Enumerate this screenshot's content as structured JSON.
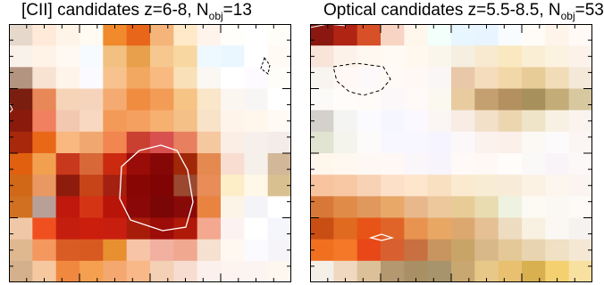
{
  "panels": [
    {
      "title_prefix": "[CII] candidates z=6-8, N",
      "title_sub": "obj",
      "title_suffix": "=13",
      "grid": [
        [
          "#e6d9cc",
          "#ffe9d9",
          "#fff4e8",
          "#fffaf2",
          "#f08a2c",
          "#e8661a",
          "#f4b47a",
          "#ffe9c8",
          "#fff4ec",
          "#fffefb",
          "#ffffff",
          "#fffdf8"
        ],
        [
          "#f8f2ea",
          "#fff2e6",
          "#fff9f2",
          "#f6fbff",
          "#f2c080",
          "#e8a04c",
          "#f6c890",
          "#f8d8a0",
          "#eef8ff",
          "#eaf7ff",
          "#ffffff",
          "#fffaf4"
        ],
        [
          "#b39480",
          "#f8e2d2",
          "#fff4ea",
          "#fbfbff",
          "#f8c28e",
          "#f2a860",
          "#f8ba80",
          "#fae0b8",
          "#fbf8f4",
          "#ffffff",
          "#fdfbff",
          "#fffdf8"
        ],
        [
          "#7a1e10",
          "#e88858",
          "#f6d4b8",
          "#f6d4bc",
          "#f4aa70",
          "#f08c40",
          "#f29c56",
          "#f6c484",
          "#fae6c8",
          "#fbf6f0",
          "#f8f6f4",
          "#ffffff"
        ],
        [
          "#8a1a0c",
          "#f08060",
          "#f2c8b0",
          "#f8d8c0",
          "#f49a58",
          "#f4a060",
          "#f6b070",
          "#f4c088",
          "#f8e2c8",
          "#fff4ea",
          "#fff6ec",
          "#fffaf4"
        ],
        [
          "#a8280c",
          "#e86818",
          "#f8b880",
          "#f0a870",
          "#f28650",
          "#c94030",
          "#d85050",
          "#e88060",
          "#f6c8a0",
          "#fbeee4",
          "#f6efec",
          "#f4ece8"
        ],
        [
          "#e06010",
          "#f2a050",
          "#c8381c",
          "#d86838",
          "#cc2a10",
          "#9a0c08",
          "#860806",
          "#a02808",
          "#e48a50",
          "#f8ddd0",
          "#f6f0ea",
          "#d2b898"
        ],
        [
          "#d06818",
          "#e89860",
          "#8e1c0c",
          "#c64418",
          "#a42010",
          "#880604",
          "#800404",
          "#9a4830",
          "#e88c58",
          "#fdeec8",
          "#fff8e8",
          "#d8c090"
        ],
        [
          "#d07020",
          "#b8a098",
          "#c0180c",
          "#d43414",
          "#b81408",
          "#8a0808",
          "#7a0606",
          "#880a08",
          "#e88440",
          "#fdf4e8",
          "#f4f4f8",
          "#ffffff"
        ],
        [
          "#f0c8a8",
          "#f05020",
          "#c41e0e",
          "#cc1e0c",
          "#c81e10",
          "#a81c0a",
          "#9c0c08",
          "#b01808",
          "#f4a890",
          "#fcf2f2",
          "#ffffff",
          "#f4f6fc"
        ],
        [
          "#e0b890",
          "#f49860",
          "#d85c24",
          "#d85a20",
          "#e89030",
          "#f8c4a8",
          "#f2b0a0",
          "#f0a890",
          "#f6e0d0",
          "#fff8f0",
          "#fbfbff",
          "#f6f4f8"
        ],
        [
          "#d4b08c",
          "#f6c8a0",
          "#f08840",
          "#f4a050",
          "#f4a870",
          "#f8b888",
          "#f4d0b4",
          "#f6ddd0",
          "#fbf0ec",
          "#fdf4f0",
          "#fbf4f0",
          "#fdf7f0"
        ]
      ]
    },
    {
      "title_prefix": "Optical candidates z=5.5-8.5, N",
      "title_sub": "obj",
      "title_suffix": "=53",
      "grid": [
        [
          "#8a1810",
          "#b02414",
          "#d85028",
          "#f8d4c4",
          "#fff6ec",
          "#f2fffa",
          "#e8f6ff",
          "#e8f4ff",
          "#f8fcff",
          "#fffcf8",
          "#fff4ea",
          "#fffaf6"
        ],
        [
          "#f8e4d8",
          "#fdf2ea",
          "#fff8f0",
          "#fffaf4",
          "#fff8ee",
          "#fbf6ec",
          "#f6eee0",
          "#f8ead0",
          "#fae8c0",
          "#faeed4",
          "#fcf2e0",
          "#fdf2ea"
        ],
        [
          "#f8f4f0",
          "#fff8f4",
          "#fdf8fa",
          "#fffaf6",
          "#fff8f4",
          "#fbf6f6",
          "#e8c8a8",
          "#f4dcbc",
          "#f2d8a8",
          "#e8cc98",
          "#f2dcb8",
          "#f4e8d8"
        ],
        [
          "#fbfaf8",
          "#fffcfa",
          "#fffbf8",
          "#fcf8fa",
          "#fffaf8",
          "#fbf8f0",
          "#e8cca0",
          "#c4a070",
          "#b49060",
          "#a8905c",
          "#c4ac78",
          "#d8c8a0"
        ],
        [
          "#d4d0cc",
          "#f4f4f2",
          "#fbfbff",
          "#f6f6ff",
          "#fbf8ff",
          "#fbf6f4",
          "#f8ece4",
          "#f2e0c8",
          "#ecd6b0",
          "#f0e4c8",
          "#f8f0e2",
          "#fbf4ee"
        ],
        [
          "#e0e4d0",
          "#f4f4ec",
          "#fdfbfa",
          "#f8f6ff",
          "#f8f6ff",
          "#f6f4ff",
          "#fcf8fa",
          "#fbf2ee",
          "#fbf0ea",
          "#fcf8f4",
          "#fcfafa",
          "#fbf6f4"
        ],
        [
          "#fff6ec",
          "#fff8f0",
          "#fdf8f4",
          "#fff8f4",
          "#fbf6fa",
          "#f8f4fc",
          "#fffaf8",
          "#fff8f4",
          "#fffcfa",
          "#fbf8f8",
          "#f8f4f8",
          "#fdf8f8"
        ],
        [
          "#f8c4a0",
          "#f8c8a4",
          "#f8d2b4",
          "#fce0c8",
          "#fde6cc",
          "#f8e0c0",
          "#fbead0",
          "#f8ecd4",
          "#f8ecd8",
          "#fbf2e4",
          "#fdf6ee",
          "#fbf4f0"
        ],
        [
          "#d87838",
          "#e08c48",
          "#e0985c",
          "#e8a868",
          "#e8b88c",
          "#ecc89c",
          "#e8cc98",
          "#e8dcb0",
          "#eef2e0",
          "#fcfaf2",
          "#fbf8f4",
          "#fdfaf8"
        ],
        [
          "#c84e14",
          "#e06a20",
          "#e85418",
          "#e06428",
          "#e89450",
          "#e8a864",
          "#dca870",
          "#e4c094",
          "#eedcc0",
          "#f8f0e0",
          "#fbf8f4",
          "#f6f2f0"
        ],
        [
          "#f07020",
          "#f47828",
          "#e84818",
          "#d86030",
          "#c87040",
          "#c89460",
          "#c8a468",
          "#d8b888",
          "#e4c898",
          "#e8d4b0",
          "#f0e0c4",
          "#f4e8d4"
        ],
        [
          "#f4f0e8",
          "#f0d8c0",
          "#dcc098",
          "#b49870",
          "#a89064",
          "#a8946c",
          "#c8a870",
          "#e8c888",
          "#e8c070",
          "#d8b050",
          "#f4d070",
          "#f8e0a0"
        ]
      ]
    }
  ]
}
